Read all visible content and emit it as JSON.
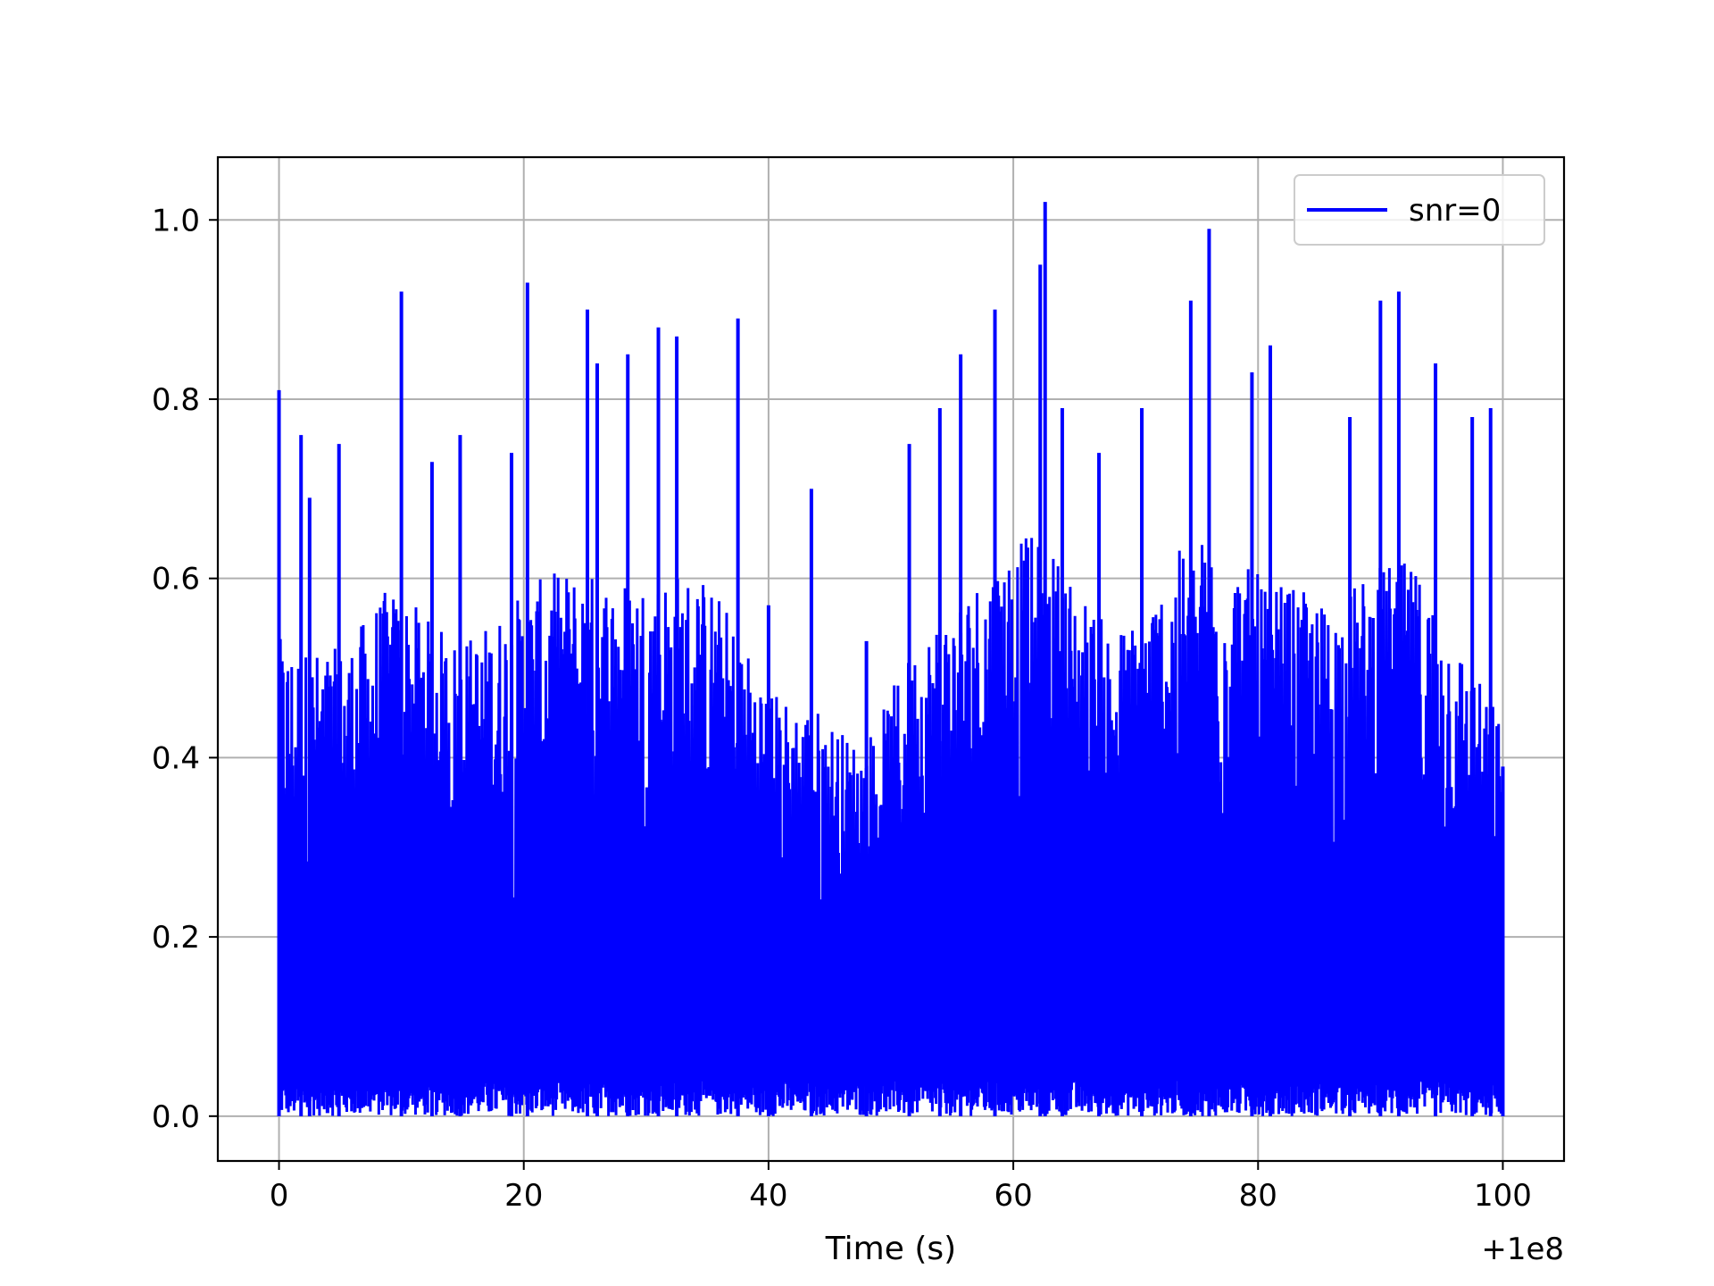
{
  "chart_data": {
    "type": "line",
    "title": "",
    "xlabel": "Time (s)",
    "ylabel": "",
    "x_offset_label": "+1e8",
    "xlim": [
      -5,
      105
    ],
    "ylim": [
      -0.05,
      1.07
    ],
    "x_ticks": [
      0,
      20,
      40,
      60,
      80,
      100
    ],
    "x_tick_labels": [
      "0",
      "20",
      "40",
      "60",
      "80",
      "100"
    ],
    "y_ticks": [
      0.0,
      0.2,
      0.4,
      0.6,
      0.8,
      1.0
    ],
    "y_tick_labels": [
      "0.0",
      "0.2",
      "0.4",
      "0.6",
      "0.8",
      "1.0"
    ],
    "grid": true,
    "legend_position": "top-right",
    "series": [
      {
        "name": "snr=0",
        "color": "#0000ff",
        "description": "dense noise-like signal spanning the full x-range with values between 0 and ~1.0",
        "peaks": [
          [
            0.0,
            0.81
          ],
          [
            1.8,
            0.76
          ],
          [
            2.5,
            0.69
          ],
          [
            4.9,
            0.75
          ],
          [
            10.0,
            0.92
          ],
          [
            12.5,
            0.73
          ],
          [
            14.8,
            0.76
          ],
          [
            19.0,
            0.74
          ],
          [
            20.3,
            0.93
          ],
          [
            25.2,
            0.9
          ],
          [
            26.0,
            0.84
          ],
          [
            28.5,
            0.85
          ],
          [
            31.0,
            0.88
          ],
          [
            32.5,
            0.87
          ],
          [
            37.5,
            0.89
          ],
          [
            40.0,
            0.57
          ],
          [
            43.5,
            0.7
          ],
          [
            48.0,
            0.53
          ],
          [
            51.5,
            0.75
          ],
          [
            54.0,
            0.79
          ],
          [
            55.7,
            0.85
          ],
          [
            58.5,
            0.9
          ],
          [
            62.2,
            0.95
          ],
          [
            62.6,
            1.02
          ],
          [
            64.0,
            0.79
          ],
          [
            67.0,
            0.74
          ],
          [
            70.5,
            0.79
          ],
          [
            74.5,
            0.91
          ],
          [
            76.0,
            0.99
          ],
          [
            79.5,
            0.83
          ],
          [
            81.0,
            0.86
          ],
          [
            87.5,
            0.78
          ],
          [
            90.0,
            0.91
          ],
          [
            91.5,
            0.92
          ],
          [
            94.5,
            0.84
          ],
          [
            97.5,
            0.78
          ],
          [
            99.0,
            0.79
          ],
          [
            100.0,
            0.39
          ]
        ],
        "base_level": 0.35
      }
    ]
  }
}
